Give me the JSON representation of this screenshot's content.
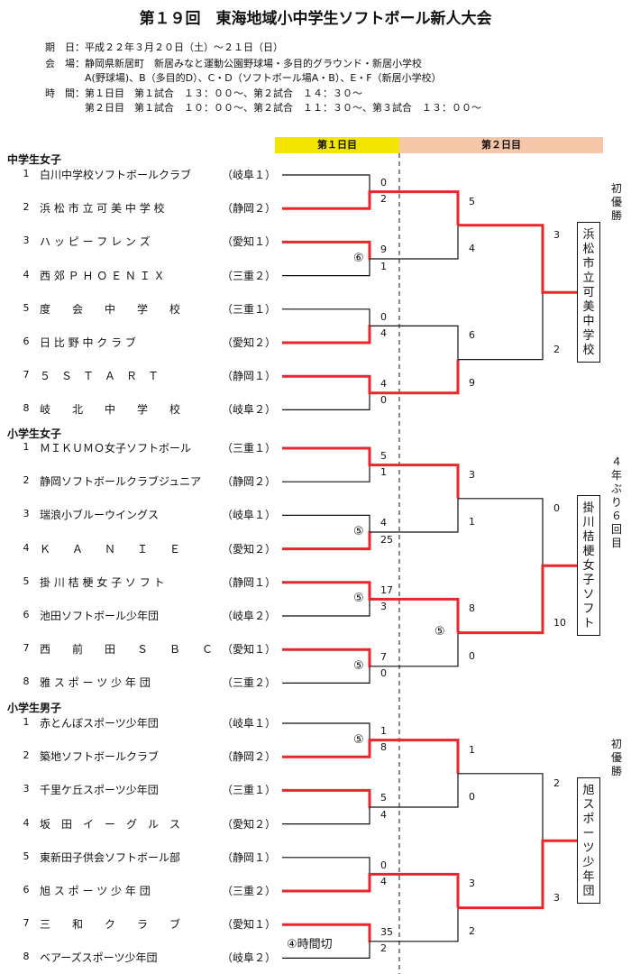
{
  "title": "第１９回　東海地域小中学生ソフトボール新人大会",
  "info": {
    "date": "期　日：平成２２年３月２０日（土）～２１日（日）",
    "venue1": "会　場：静岡県新居町　新居みなと運動公園野球場・多目的グラウンド・新居小学校",
    "venue2": "A(野球場)、B（多目的D）、C・D（ソフトボール場A・B）、E・F（新居小学校）",
    "time1": "時　間：第１日目　第１試合　１３：００～、第２試合　１４：３０～",
    "time2": "第２日目　第１試合　１０：００～、第２試合　１１：３０～、第３試合　１３：００～"
  },
  "headers": {
    "day1": "第１日目",
    "day2": "第２日目"
  },
  "sections": [
    {
      "name": "中学生女子",
      "teams": [
        {
          "no": "1",
          "name": "白川中学校ソフトボールクラブ",
          "pref": "（岐阜１）"
        },
        {
          "no": "2",
          "name": "浜 松 市 立 可 美 中 学 校",
          "pref": "（静岡２）"
        },
        {
          "no": "3",
          "name": "ハ ッ ピ ー フ レ ン ズ",
          "pref": "（愛知１）"
        },
        {
          "no": "4",
          "name": "西 郊 Ｐ Ｈ Ｏ Ｅ Ｎ Ｉ Ｘ",
          "pref": "（三重２）"
        },
        {
          "no": "5",
          "name": "度　　会　　中　　学　　校",
          "pref": "（三重１）"
        },
        {
          "no": "6",
          "name": "日 比 野 中 ク ラ ブ",
          "pref": "（愛知２）"
        },
        {
          "no": "7",
          "name": "５　Ｓ　Ｔ　Ａ　Ｒ　Ｔ",
          "pref": "（静岡１）"
        },
        {
          "no": "8",
          "name": "岐　　北　　中　　学　　校",
          "pref": "（岐阜２）"
        }
      ],
      "r1_scores": [
        "0",
        "2",
        "9",
        "1",
        "0",
        "4",
        "4",
        "0"
      ],
      "r1_marks": [
        "",
        "⑥",
        "",
        ""
      ],
      "r2_scores": [
        "5",
        "4",
        "6",
        "9"
      ],
      "r2_mark": "",
      "final_scores": [
        "3",
        "2"
      ],
      "champion": "浜松市立可美中学校",
      "note": "初優勝"
    },
    {
      "name": "小学生女子",
      "teams": [
        {
          "no": "1",
          "name": "ＭＩＫＵＭＯ女子ソフトボール",
          "pref": "（三重１）"
        },
        {
          "no": "2",
          "name": "静岡ソフトボールクラブジュニア",
          "pref": "（静岡２）"
        },
        {
          "no": "3",
          "name": "瑞浪小ブルーウイングス",
          "pref": "（岐阜１）"
        },
        {
          "no": "4",
          "name": "Ｋ　　Ａ　　Ｎ　　Ｉ　　Ｅ",
          "pref": "（愛知２）"
        },
        {
          "no": "5",
          "name": "掛 川 桔 梗 女 子 ソ フ ト",
          "pref": "（静岡１）"
        },
        {
          "no": "6",
          "name": "池田ソフトボール少年団",
          "pref": "（岐阜２）"
        },
        {
          "no": "7",
          "name": "西　　前　　田　　Ｓ　　Ｂ　　Ｃ",
          "pref": "（愛知１）"
        },
        {
          "no": "8",
          "name": "雅 ス ポ ー ツ 少 年 団",
          "pref": "（三重２）"
        }
      ],
      "r1_scores": [
        "5",
        "1",
        "4",
        "25",
        "17",
        "3",
        "7",
        "0"
      ],
      "r1_marks": [
        "",
        "⑤",
        "⑤",
        "⑤"
      ],
      "r2_scores": [
        "3",
        "1",
        "8",
        "0"
      ],
      "r2_mark": "⑤",
      "final_scores": [
        "0",
        "10"
      ],
      "champion": "掛川桔梗女子ソフト",
      "note": "４年ぶり６回目"
    },
    {
      "name": "小学生男子",
      "teams": [
        {
          "no": "1",
          "name": "赤とんぼスポーツ少年団",
          "pref": "（岐阜１）"
        },
        {
          "no": "2",
          "name": "築地ソフトボールクラブ",
          "pref": "（静岡２）"
        },
        {
          "no": "3",
          "name": "千里ケ丘スポーツ少年団",
          "pref": "（三重１）"
        },
        {
          "no": "4",
          "name": "坂　田　イ　ー　グ　ル　ス",
          "pref": "（愛知２）"
        },
        {
          "no": "5",
          "name": "東新田子供会ソフトボール部",
          "pref": "（静岡１）"
        },
        {
          "no": "6",
          "name": "旭 ス ポ ー ツ 少 年 団",
          "pref": "（三重２）"
        },
        {
          "no": "7",
          "name": "三　　和　　ク　　ラ　　ブ",
          "pref": "（愛知１）"
        },
        {
          "no": "8",
          "name": "ベアーズスポーツ少年団",
          "pref": "（岐阜２）"
        }
      ],
      "r1_scores": [
        "1",
        "8",
        "5",
        "4",
        "0",
        "4",
        "35",
        "2"
      ],
      "r1_marks": [
        "⑤",
        "",
        "",
        "④時間切"
      ],
      "r2_scores": [
        "1",
        "0",
        "3",
        "2"
      ],
      "r2_mark": "",
      "final_scores": [
        "2",
        "3"
      ],
      "champion": "旭スポーツ少年団",
      "note": "初優勝"
    }
  ],
  "colors": {
    "win": "#e8262b",
    "line": "#111111",
    "day1": "#f2e600",
    "day2": "#f6c6a8"
  }
}
